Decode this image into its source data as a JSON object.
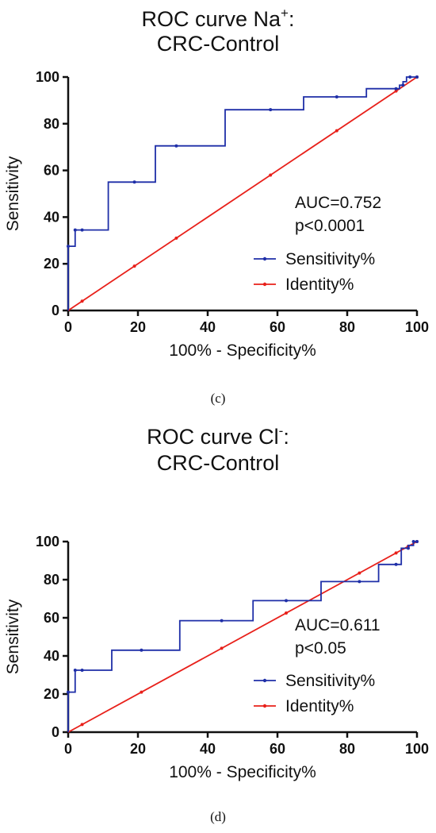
{
  "chart_data": [
    {
      "type": "line",
      "title_main": "ROC curve Na",
      "title_sup": "+",
      "title_tail": ":",
      "title_line2": "CRC-Control",
      "xlabel": "100% - Specificity%",
      "ylabel": "Sensitivity",
      "xlim": [
        0,
        100
      ],
      "ylim": [
        0,
        100
      ],
      "xticks": [
        "0",
        "20",
        "40",
        "60",
        "80",
        "100"
      ],
      "yticks": [
        "0",
        "20",
        "40",
        "60",
        "80",
        "100"
      ],
      "annotation": [
        "AUC=0.752",
        "p<0.0001"
      ],
      "panel_label": "(c)",
      "legend_position": "right",
      "series": [
        {
          "name": "Sensitivity%",
          "color": "#1f2fa8",
          "step": true,
          "x": [
            0,
            0,
            2,
            2,
            4,
            11.5,
            11.5,
            19,
            25,
            25,
            31,
            45,
            45,
            58,
            67.5,
            67.5,
            77,
            85.5,
            85.5,
            94,
            95,
            95,
            96,
            96,
            97,
            97,
            98,
            98,
            100
          ],
          "y": [
            0,
            27.5,
            27.5,
            34.5,
            34.5,
            34.5,
            55,
            55,
            55,
            70.5,
            70.5,
            70.5,
            86,
            86,
            86,
            91.5,
            91.5,
            91.5,
            95,
            95,
            95,
            96.5,
            96.5,
            98,
            98,
            100,
            100,
            100,
            100
          ],
          "markers_x": [
            0,
            2,
            4,
            19,
            31,
            58,
            77,
            94,
            96,
            98,
            100
          ],
          "markers_y": [
            27.5,
            34.5,
            34.5,
            55,
            70.5,
            86,
            91.5,
            95,
            96.5,
            100,
            100
          ]
        },
        {
          "name": "Identity%",
          "color": "#e8201a",
          "step": false,
          "x": [
            0,
            100
          ],
          "y": [
            0,
            100
          ],
          "markers_x": [
            4,
            19,
            31,
            58,
            77,
            94,
            100
          ],
          "markers_y": [
            4,
            19,
            31,
            58,
            77,
            94,
            100
          ]
        }
      ]
    },
    {
      "type": "line",
      "title_main": "ROC curve Cl",
      "title_sup": "-",
      "title_tail": ":",
      "title_line2": "CRC-Control",
      "xlabel": "100% - Specificity%",
      "ylabel": "Sensitivity",
      "xlim": [
        0,
        100
      ],
      "ylim": [
        0,
        100
      ],
      "xticks": [
        "0",
        "20",
        "40",
        "60",
        "80",
        "100"
      ],
      "yticks": [
        "0",
        "20",
        "40",
        "60",
        "80",
        "100"
      ],
      "annotation": [
        "AUC=0.611",
        "p<0.05"
      ],
      "panel_label": "(d)",
      "legend_position": "right",
      "series": [
        {
          "name": "Sensitivity%",
          "color": "#1f2fa8",
          "step": true,
          "x": [
            0,
            0,
            2,
            2,
            4,
            12.5,
            12.5,
            21,
            32,
            32,
            44,
            53,
            53,
            62.5,
            72.5,
            72.5,
            83.5,
            89,
            89,
            94,
            95.5,
            95.5,
            97.5,
            97.5,
            99,
            99,
            100
          ],
          "y": [
            0,
            21,
            21,
            32.5,
            32.5,
            32.5,
            43,
            43,
            43,
            58.5,
            58.5,
            58.5,
            69,
            69,
            69,
            79,
            79,
            79,
            88,
            88,
            88,
            96.5,
            96.5,
            98,
            98,
            100,
            100
          ],
          "markers_x": [
            0,
            2,
            4,
            21,
            44,
            62.5,
            83.5,
            94,
            97.5,
            99,
            100
          ],
          "markers_y": [
            21,
            32.5,
            32.5,
            43,
            58.5,
            69,
            79,
            88,
            96.5,
            100,
            100
          ]
        },
        {
          "name": "Identity%",
          "color": "#e8201a",
          "step": false,
          "x": [
            0,
            100
          ],
          "y": [
            0,
            100
          ],
          "markers_x": [
            4,
            21,
            44,
            62.5,
            83.5,
            94,
            97.5,
            100
          ],
          "markers_y": [
            4,
            21,
            44,
            62.5,
            83.5,
            94,
            97.5,
            100
          ]
        }
      ]
    }
  ]
}
